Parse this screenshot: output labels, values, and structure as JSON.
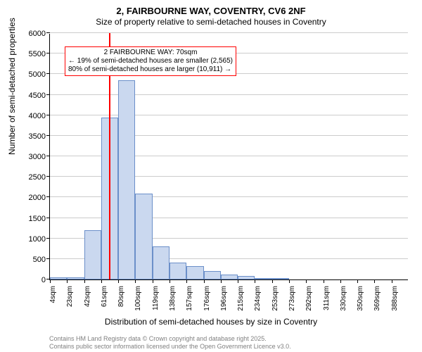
{
  "title_line1": "2, FAIRBOURNE WAY, COVENTRY, CV6 2NF",
  "title_line2": "Size of property relative to semi-detached houses in Coventry",
  "y_axis_label": "Number of semi-detached properties",
  "x_axis_label": "Distribution of semi-detached houses by size in Coventry",
  "chart": {
    "type": "histogram",
    "ylim": [
      0,
      6000
    ],
    "ytick_step": 500,
    "ymax_plot": 6000,
    "bar_color": "#cad8ef",
    "bar_border_color": "#6b8fc9",
    "grid_color": "#cccccc",
    "background_color": "#ffffff",
    "ref_line_color": "#ff0000",
    "ref_line_x_index": 3.47,
    "bins": [
      {
        "label": "4sqm",
        "value": 60
      },
      {
        "label": "23sqm",
        "value": 60
      },
      {
        "label": "42sqm",
        "value": 1200
      },
      {
        "label": "61sqm",
        "value": 3950
      },
      {
        "label": "80sqm",
        "value": 4850
      },
      {
        "label": "100sqm",
        "value": 2100
      },
      {
        "label": "119sqm",
        "value": 800
      },
      {
        "label": "138sqm",
        "value": 420
      },
      {
        "label": "157sqm",
        "value": 320
      },
      {
        "label": "176sqm",
        "value": 200
      },
      {
        "label": "196sqm",
        "value": 120
      },
      {
        "label": "215sqm",
        "value": 80
      },
      {
        "label": "234sqm",
        "value": 40
      },
      {
        "label": "253sqm",
        "value": 20
      },
      {
        "label": "273sqm",
        "value": 0
      },
      {
        "label": "292sqm",
        "value": 0
      },
      {
        "label": "311sqm",
        "value": 0
      },
      {
        "label": "330sqm",
        "value": 0
      },
      {
        "label": "350sqm",
        "value": 0
      },
      {
        "label": "369sqm",
        "value": 0
      },
      {
        "label": "388sqm",
        "value": 0
      }
    ]
  },
  "annotation": {
    "line1": "2 FAIRBOURNE WAY: 70sqm",
    "line2": "← 19% of semi-detached houses are smaller (2,565)",
    "line3": "80% of semi-detached houses are larger (10,911) →",
    "box_border_color": "#ff0000"
  },
  "footer_line1": "Contains HM Land Registry data © Crown copyright and database right 2025.",
  "footer_line2": "Contains public sector information licensed under the Open Government Licence v3.0."
}
